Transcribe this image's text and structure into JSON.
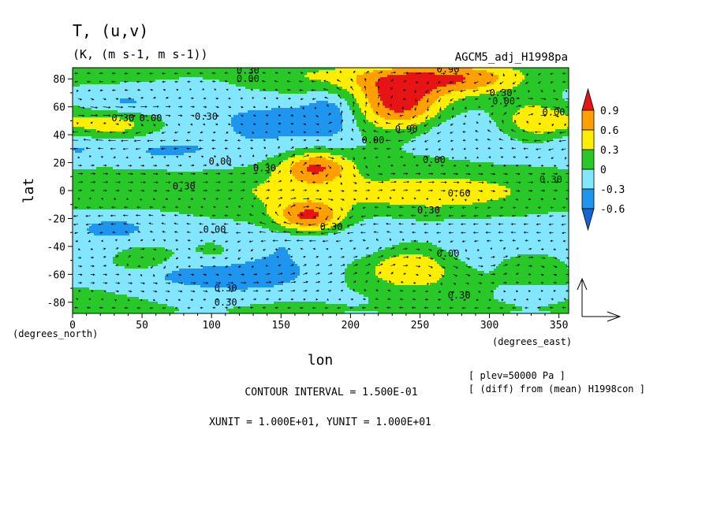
{
  "chart_data": {
    "type": "heatmap",
    "title": "T, (u,v)",
    "subtitle": "(K, (m s-1, m s-1))",
    "experiment": "AGCM5_adj_H1998pa",
    "xlabel": "lon",
    "ylabel": "lat",
    "x_unit_label": "(degrees_east)",
    "y_unit_label": "(degrees_north)",
    "xlim": [
      0,
      357
    ],
    "ylim": [
      -88,
      88
    ],
    "xticks": [
      0,
      50,
      100,
      150,
      200,
      250,
      300,
      350
    ],
    "yticks": [
      -80,
      -60,
      -40,
      -20,
      0,
      20,
      40,
      60,
      80
    ],
    "colorbar": {
      "levels": [
        -0.6,
        -0.3,
        0,
        0.3,
        0.6,
        0.9
      ],
      "labels": [
        "-0.6",
        "-0.3",
        "0",
        "0.3",
        "0.6",
        "0.9"
      ],
      "colors": [
        "#1464d2",
        "#1e96f0",
        "#82e6ff",
        "#28c828",
        "#ffee00",
        "#ffa000",
        "#e61414"
      ]
    },
    "contour_labels": [
      {
        "text": "0.30",
        "x": 118,
        "y": 86
      },
      {
        "text": "0.00",
        "x": 118,
        "y": 80
      },
      {
        "text": "0.90",
        "x": 262,
        "y": 87
      },
      {
        "text": "0.30",
        "x": 300,
        "y": 70
      },
      {
        "text": "0.00",
        "x": 302,
        "y": 64
      },
      {
        "text": "0.30",
        "x": 28,
        "y": 52
      },
      {
        "text": "0.00",
        "x": 48,
        "y": 52
      },
      {
        "text": "0.30",
        "x": 88,
        "y": 53
      },
      {
        "text": "0.00",
        "x": 338,
        "y": 56
      },
      {
        "text": "0.90",
        "x": 232,
        "y": 44
      },
      {
        "text": "0.00",
        "x": 208,
        "y": 36
      },
      {
        "text": "0.00",
        "x": 98,
        "y": 21
      },
      {
        "text": "0.30",
        "x": 130,
        "y": 16
      },
      {
        "text": "0.00",
        "x": 252,
        "y": 22
      },
      {
        "text": "0.30",
        "x": 336,
        "y": 8
      },
      {
        "text": "0.30",
        "x": 72,
        "y": 3
      },
      {
        "text": "0.60",
        "x": 270,
        "y": -2
      },
      {
        "text": "0.30",
        "x": 248,
        "y": -14
      },
      {
        "text": "0.30",
        "x": 178,
        "y": -26
      },
      {
        "text": "0.00",
        "x": 94,
        "y": -28
      },
      {
        "text": "0.00",
        "x": 262,
        "y": -45
      },
      {
        "text": "0.30",
        "x": 102,
        "y": -70
      },
      {
        "text": "0.30",
        "x": 270,
        "y": -75
      },
      {
        "text": "0.30",
        "x": 102,
        "y": -80
      }
    ],
    "level_values": [
      0.9,
      0.6,
      0.3,
      0.0
    ]
  },
  "notes": {
    "plev": "[ plev=50000 Pa ]",
    "diff": "[ (diff) from (mean) H1998con ]",
    "contour_interval": "CONTOUR INTERVAL = 1.500E-01",
    "units": "XUNIT = 1.000E+01, YUNIT = 1.000E+01"
  }
}
